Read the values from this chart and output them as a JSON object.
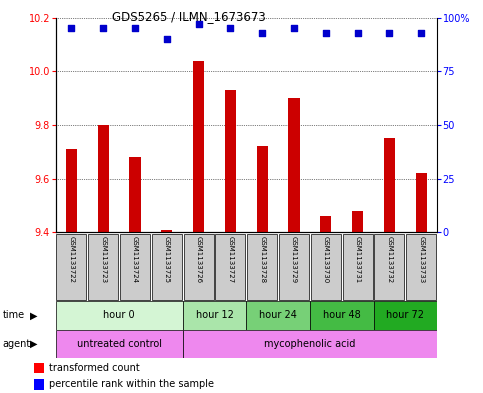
{
  "title": "GDS5265 / ILMN_1673673",
  "samples": [
    "GSM1133722",
    "GSM1133723",
    "GSM1133724",
    "GSM1133725",
    "GSM1133726",
    "GSM1133727",
    "GSM1133728",
    "GSM1133729",
    "GSM1133730",
    "GSM1133731",
    "GSM1133732",
    "GSM1133733"
  ],
  "transformed_counts": [
    9.71,
    9.8,
    9.68,
    9.41,
    10.04,
    9.93,
    9.72,
    9.9,
    9.46,
    9.48,
    9.75,
    9.62
  ],
  "percentile_ranks": [
    95,
    95,
    95,
    90,
    97,
    95,
    93,
    95,
    93,
    93,
    93,
    93
  ],
  "ylim_left": [
    9.4,
    10.2
  ],
  "ylim_right": [
    0,
    100
  ],
  "yticks_left": [
    9.4,
    9.6,
    9.8,
    10.0,
    10.2
  ],
  "yticks_right": [
    0,
    25,
    50,
    75,
    100
  ],
  "ytick_labels_right": [
    "0",
    "25",
    "50",
    "75",
    "100%"
  ],
  "bar_color": "#cc0000",
  "dot_color": "#0000cc",
  "bar_bottom": 9.4,
  "time_groups": [
    {
      "label": "hour 0",
      "start": 0,
      "end": 4,
      "color": "#d4f5d4"
    },
    {
      "label": "hour 12",
      "start": 4,
      "end": 6,
      "color": "#aae5aa"
    },
    {
      "label": "hour 24",
      "start": 6,
      "end": 8,
      "color": "#77d077"
    },
    {
      "label": "hour 48",
      "start": 8,
      "end": 10,
      "color": "#44bb44"
    },
    {
      "label": "hour 72",
      "start": 10,
      "end": 12,
      "color": "#22aa22"
    }
  ],
  "agent_groups": [
    {
      "label": "untreated control",
      "start": 0,
      "end": 4,
      "color": "#ee88ee"
    },
    {
      "label": "mycophenolic acid",
      "start": 4,
      "end": 12,
      "color": "#ee88ee"
    }
  ],
  "legend_bar_label": "transformed count",
  "legend_dot_label": "percentile rank within the sample",
  "sample_box_color": "#cccccc",
  "border_color": "#000000"
}
